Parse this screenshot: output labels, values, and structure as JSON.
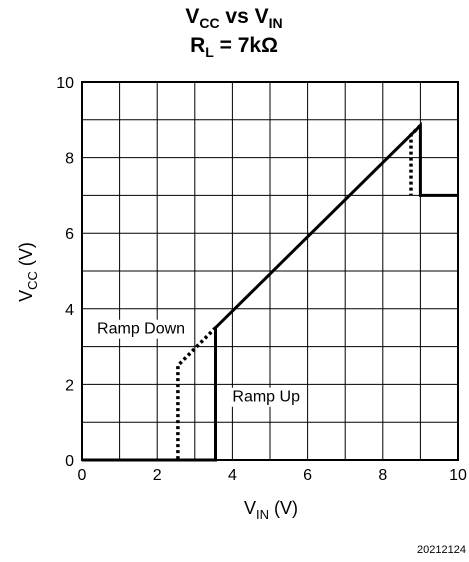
{
  "chart_data": {
    "type": "line",
    "title": {
      "line1": {
        "main": "V",
        "sub": "CC",
        "mid": " vs V",
        "sub2": "IN"
      },
      "line2": {
        "main": "R",
        "sub": "L",
        "rest": " = 7kΩ"
      }
    },
    "xlabel": {
      "main": "V",
      "sub": "IN",
      "rest": " (V)"
    },
    "ylabel": {
      "main": "V",
      "sub": "CC",
      "rest": " (V)"
    },
    "xlim": [
      0,
      10
    ],
    "ylim": [
      0,
      10
    ],
    "x_ticks": [
      0,
      2,
      4,
      6,
      8,
      10
    ],
    "y_ticks": [
      0,
      2,
      4,
      6,
      8,
      10
    ],
    "grid": true,
    "grid_step": 1,
    "series": [
      {
        "style": "solid",
        "points": [
          [
            0,
            0
          ],
          [
            3.55,
            0
          ],
          [
            3.55,
            3.5
          ],
          [
            9.0,
            8.85
          ],
          [
            9.0,
            7.0
          ],
          [
            10.0,
            7.0
          ]
        ]
      },
      {
        "style": "dotted",
        "points": [
          [
            9.0,
            8.85
          ],
          [
            8.75,
            8.6
          ],
          [
            8.75,
            7.0
          ]
        ]
      },
      {
        "style": "dotted",
        "points": [
          [
            3.55,
            3.5
          ],
          [
            2.55,
            2.5
          ],
          [
            2.55,
            0
          ]
        ]
      }
    ],
    "annotations": [
      {
        "id": "ramp-down",
        "text": "Ramp Down",
        "x": 0.4,
        "y": 3.5
      },
      {
        "id": "ramp-up",
        "text": "Ramp Up",
        "x": 4.0,
        "y": 1.7
      }
    ],
    "figure_id": "20212124"
  }
}
